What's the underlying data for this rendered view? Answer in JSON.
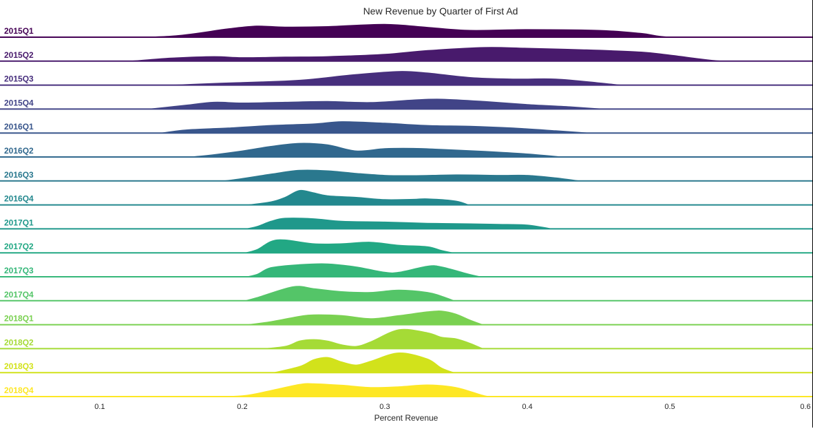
{
  "chart_data": {
    "type": "area",
    "title": "New Revenue by Quarter of First Ad",
    "xlabel": "Percent Revenue",
    "ylabel": "",
    "xlim": [
      0.03,
      0.6
    ],
    "xticks": [
      0.1,
      0.2,
      0.3,
      0.4,
      0.5,
      0.6
    ],
    "xtick_labels": [
      "0.1",
      "0.2",
      "0.3",
      "0.4",
      "0.5",
      "0.6"
    ],
    "grid": false,
    "legend": "none",
    "colormap": "viridis",
    "series": [
      {
        "name": "2015Q1",
        "color": "#440154",
        "x": [
          0.1,
          0.15,
          0.19,
          0.21,
          0.23,
          0.26,
          0.3,
          0.33,
          0.36,
          0.4,
          0.45,
          0.48,
          0.5,
          0.55
        ],
        "y": [
          0,
          0.12,
          0.6,
          0.78,
          0.72,
          0.75,
          0.9,
          0.7,
          0.5,
          0.55,
          0.5,
          0.3,
          0.05,
          0
        ]
      },
      {
        "name": "2015Q2",
        "color": "#481a6c",
        "x": [
          0.1,
          0.12,
          0.15,
          0.18,
          0.2,
          0.23,
          0.26,
          0.3,
          0.33,
          0.37,
          0.4,
          0.44,
          0.48,
          0.5,
          0.53,
          0.55
        ],
        "y": [
          0,
          0.04,
          0.25,
          0.35,
          0.28,
          0.32,
          0.35,
          0.5,
          0.75,
          0.95,
          0.9,
          0.8,
          0.65,
          0.45,
          0.1,
          0
        ]
      },
      {
        "name": "2015Q3",
        "color": "#472f7d",
        "x": [
          0.13,
          0.15,
          0.18,
          0.2,
          0.23,
          0.25,
          0.28,
          0.31,
          0.33,
          0.36,
          0.39,
          0.42,
          0.45,
          0.47
        ],
        "y": [
          0,
          0.04,
          0.16,
          0.22,
          0.32,
          0.45,
          0.75,
          0.95,
          0.85,
          0.55,
          0.45,
          0.45,
          0.2,
          0
        ]
      },
      {
        "name": "2015Q4",
        "color": "#414487",
        "x": [
          0.13,
          0.16,
          0.18,
          0.2,
          0.23,
          0.26,
          0.29,
          0.32,
          0.34,
          0.37,
          0.4,
          0.43,
          0.46
        ],
        "y": [
          0,
          0.3,
          0.5,
          0.45,
          0.5,
          0.55,
          0.48,
          0.65,
          0.7,
          0.55,
          0.35,
          0.2,
          0
        ]
      },
      {
        "name": "2016Q1",
        "color": "#39568c",
        "x": [
          0.14,
          0.16,
          0.19,
          0.22,
          0.25,
          0.27,
          0.3,
          0.33,
          0.36,
          0.39,
          0.42,
          0.45
        ],
        "y": [
          0,
          0.25,
          0.38,
          0.55,
          0.65,
          0.8,
          0.7,
          0.55,
          0.5,
          0.38,
          0.2,
          0
        ]
      },
      {
        "name": "2016Q2",
        "color": "#31688e",
        "x": [
          0.15,
          0.17,
          0.2,
          0.22,
          0.24,
          0.26,
          0.28,
          0.3,
          0.32,
          0.34,
          0.37,
          0.4,
          0.43
        ],
        "y": [
          0,
          0.1,
          0.45,
          0.75,
          0.95,
          0.85,
          0.45,
          0.6,
          0.62,
          0.55,
          0.42,
          0.25,
          0
        ]
      },
      {
        "name": "2016Q3",
        "color": "#2a788e",
        "x": [
          0.17,
          0.19,
          0.22,
          0.24,
          0.26,
          0.28,
          0.3,
          0.32,
          0.35,
          0.38,
          0.4,
          0.42,
          0.44
        ],
        "y": [
          0,
          0.08,
          0.5,
          0.75,
          0.72,
          0.55,
          0.42,
          0.4,
          0.45,
          0.42,
          0.42,
          0.25,
          0
        ]
      },
      {
        "name": "2016Q4",
        "color": "#23888e",
        "x": [
          0.2,
          0.22,
          0.23,
          0.24,
          0.25,
          0.26,
          0.28,
          0.3,
          0.32,
          0.33,
          0.35,
          0.36
        ],
        "y": [
          0,
          0.25,
          0.55,
          1.0,
          0.85,
          0.65,
          0.55,
          0.4,
          0.42,
          0.45,
          0.3,
          0
        ]
      },
      {
        "name": "2017Q1",
        "color": "#1f988b",
        "x": [
          0.2,
          0.21,
          0.22,
          0.23,
          0.25,
          0.27,
          0.3,
          0.33,
          0.36,
          0.38,
          0.4,
          0.42
        ],
        "y": [
          0,
          0.2,
          0.55,
          0.75,
          0.72,
          0.55,
          0.5,
          0.42,
          0.38,
          0.35,
          0.3,
          0
        ]
      },
      {
        "name": "2017Q2",
        "color": "#22a884",
        "x": [
          0.2,
          0.21,
          0.22,
          0.23,
          0.25,
          0.27,
          0.29,
          0.31,
          0.33,
          0.34,
          0.35
        ],
        "y": [
          0,
          0.25,
          0.8,
          0.9,
          0.65,
          0.65,
          0.75,
          0.55,
          0.45,
          0.2,
          0
        ]
      },
      {
        "name": "2017Q3",
        "color": "#35b779",
        "x": [
          0.2,
          0.21,
          0.22,
          0.24,
          0.26,
          0.28,
          0.3,
          0.31,
          0.33,
          0.34,
          0.36,
          0.37
        ],
        "y": [
          0,
          0.2,
          0.65,
          0.85,
          0.9,
          0.7,
          0.35,
          0.35,
          0.75,
          0.7,
          0.2,
          0
        ]
      },
      {
        "name": "2017Q4",
        "color": "#54c568",
        "x": [
          0.2,
          0.21,
          0.23,
          0.24,
          0.25,
          0.27,
          0.29,
          0.31,
          0.33,
          0.34,
          0.35
        ],
        "y": [
          0,
          0.25,
          0.85,
          1.0,
          0.85,
          0.65,
          0.6,
          0.75,
          0.6,
          0.35,
          0
        ]
      },
      {
        "name": "2018Q1",
        "color": "#7ad151",
        "x": [
          0.2,
          0.22,
          0.24,
          0.25,
          0.27,
          0.29,
          0.31,
          0.33,
          0.34,
          0.35,
          0.36,
          0.37
        ],
        "y": [
          0,
          0.25,
          0.6,
          0.7,
          0.65,
          0.45,
          0.65,
          0.9,
          0.95,
          0.75,
          0.35,
          0
        ]
      },
      {
        "name": "2018Q2",
        "color": "#a5db36",
        "x": [
          0.21,
          0.23,
          0.24,
          0.25,
          0.26,
          0.27,
          0.28,
          0.29,
          0.31,
          0.33,
          0.34,
          0.35,
          0.36,
          0.37
        ],
        "y": [
          0,
          0.2,
          0.55,
          0.65,
          0.55,
          0.3,
          0.2,
          0.5,
          1.3,
          1.1,
          0.8,
          0.7,
          0.4,
          0
        ]
      },
      {
        "name": "2018Q3",
        "color": "#d2e21b",
        "x": [
          0.22,
          0.24,
          0.25,
          0.26,
          0.27,
          0.28,
          0.29,
          0.31,
          0.33,
          0.34,
          0.35
        ],
        "y": [
          0,
          0.45,
          0.9,
          1.05,
          0.75,
          0.55,
          0.8,
          1.35,
          0.95,
          0.35,
          0
        ]
      },
      {
        "name": "2018Q4",
        "color": "#fde725",
        "x": [
          0.17,
          0.2,
          0.22,
          0.24,
          0.25,
          0.27,
          0.29,
          0.31,
          0.33,
          0.35,
          0.37,
          0.38
        ],
        "y": [
          0,
          0.1,
          0.45,
          0.85,
          0.9,
          0.8,
          0.65,
          0.7,
          0.82,
          0.65,
          0.1,
          0
        ]
      }
    ]
  }
}
